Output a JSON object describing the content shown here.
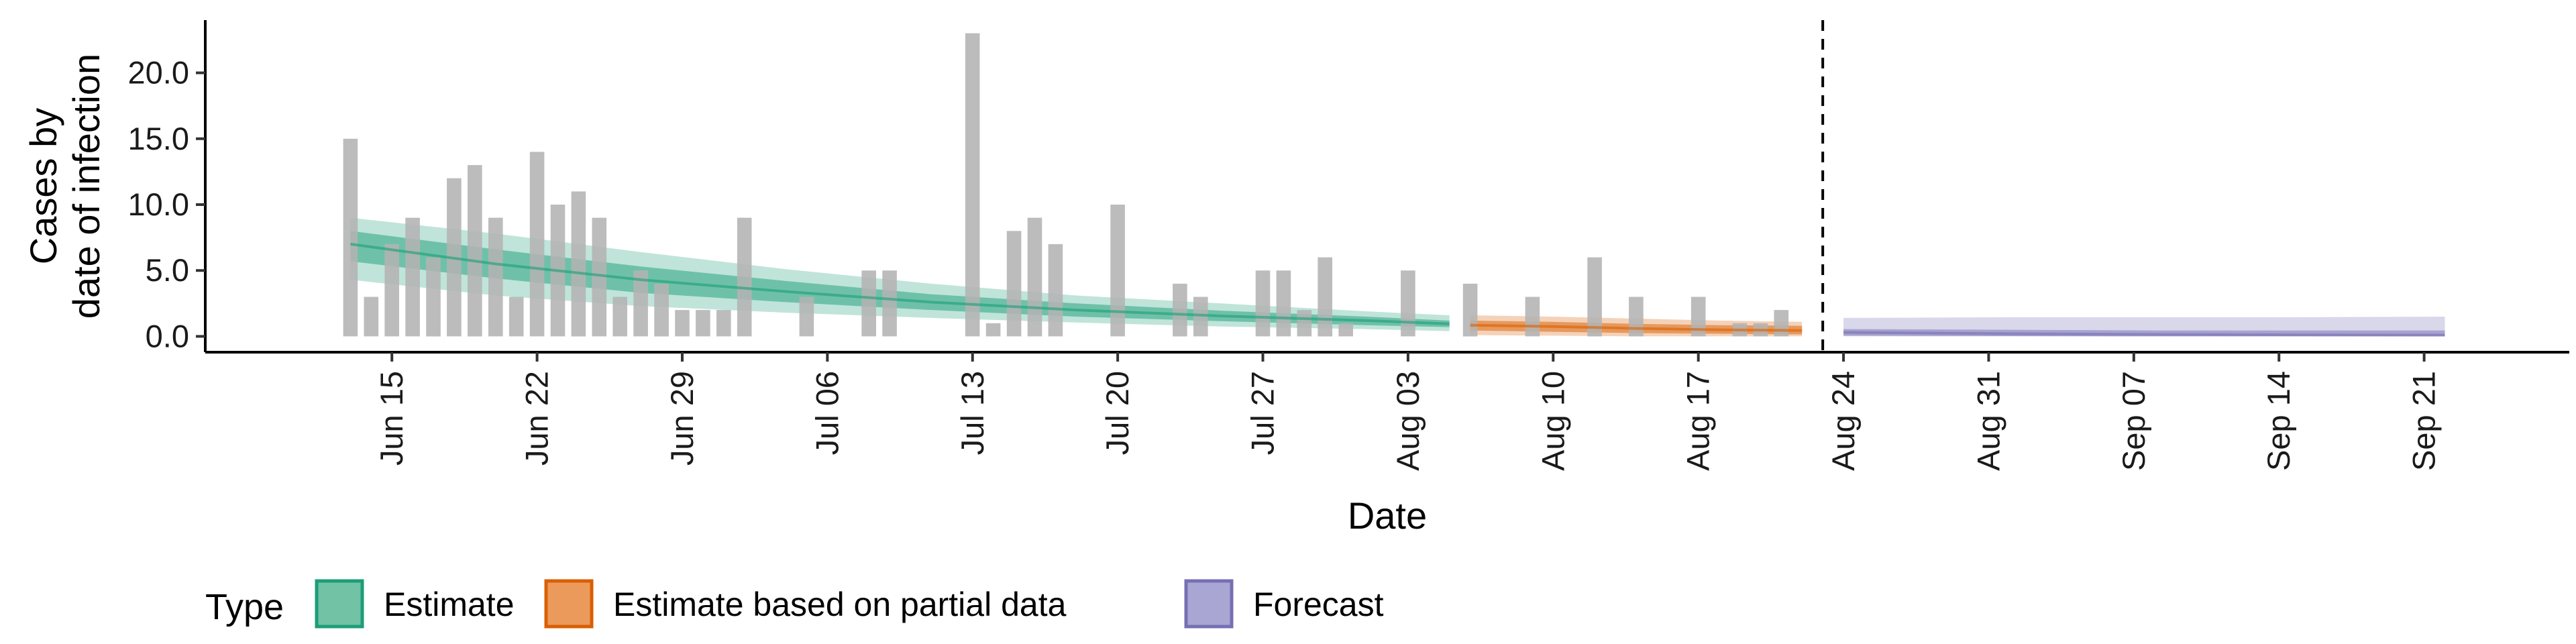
{
  "chart_data": {
    "type": "bar",
    "title": "",
    "xlabel": "Date",
    "ylabel_lines": [
      "Cases by",
      "date of infection"
    ],
    "ylim": [
      -1.2,
      24
    ],
    "y_ticks": [
      "0.0",
      "5.0",
      "10.0",
      "15.0",
      "20.0"
    ],
    "y_tick_values": [
      0,
      5,
      10,
      15,
      20
    ],
    "xlim": [
      "2020-06-06",
      "2020-09-28"
    ],
    "x_ticks": [
      {
        "date": "2020-06-15",
        "label": "Jun 15"
      },
      {
        "date": "2020-06-22",
        "label": "Jun 22"
      },
      {
        "date": "2020-06-29",
        "label": "Jun 29"
      },
      {
        "date": "2020-07-06",
        "label": "Jul 06"
      },
      {
        "date": "2020-07-13",
        "label": "Jul 13"
      },
      {
        "date": "2020-07-20",
        "label": "Jul 20"
      },
      {
        "date": "2020-07-27",
        "label": "Jul 27"
      },
      {
        "date": "2020-08-03",
        "label": "Aug 03"
      },
      {
        "date": "2020-08-10",
        "label": "Aug 10"
      },
      {
        "date": "2020-08-17",
        "label": "Aug 17"
      },
      {
        "date": "2020-08-24",
        "label": "Aug 24"
      },
      {
        "date": "2020-08-31",
        "label": "Aug 31"
      },
      {
        "date": "2020-09-07",
        "label": "Sep 07"
      },
      {
        "date": "2020-09-14",
        "label": "Sep 14"
      },
      {
        "date": "2020-09-21",
        "label": "Sep 21"
      }
    ],
    "grid": false,
    "reported_cases": {
      "color": "#b3b3b3",
      "dates": [
        "2020-06-13",
        "2020-06-14",
        "2020-06-15",
        "2020-06-16",
        "2020-06-17",
        "2020-06-18",
        "2020-06-19",
        "2020-06-20",
        "2020-06-21",
        "2020-06-22",
        "2020-06-23",
        "2020-06-24",
        "2020-06-25",
        "2020-06-26",
        "2020-06-27",
        "2020-06-28",
        "2020-06-29",
        "2020-06-30",
        "2020-07-01",
        "2020-07-02",
        "2020-07-03",
        "2020-07-04",
        "2020-07-05",
        "2020-07-06",
        "2020-07-07",
        "2020-07-08",
        "2020-07-09",
        "2020-07-10",
        "2020-07-11",
        "2020-07-12",
        "2020-07-13",
        "2020-07-14",
        "2020-07-15",
        "2020-07-16",
        "2020-07-17",
        "2020-07-18",
        "2020-07-19",
        "2020-07-20",
        "2020-07-21",
        "2020-07-22",
        "2020-07-23",
        "2020-07-24",
        "2020-07-25",
        "2020-07-26",
        "2020-07-27",
        "2020-07-28",
        "2020-07-29",
        "2020-07-30",
        "2020-07-31",
        "2020-08-01",
        "2020-08-02",
        "2020-08-03",
        "2020-08-04",
        "2020-08-05",
        "2020-08-06",
        "2020-08-07",
        "2020-08-08",
        "2020-08-09",
        "2020-08-10",
        "2020-08-11",
        "2020-08-12",
        "2020-08-13",
        "2020-08-14",
        "2020-08-15",
        "2020-08-16",
        "2020-08-17",
        "2020-08-18",
        "2020-08-19",
        "2020-08-20",
        "2020-08-21"
      ],
      "values": [
        15,
        3,
        7,
        9,
        6,
        12,
        13,
        9,
        3,
        14,
        10,
        11,
        9,
        3,
        5,
        4,
        2,
        2,
        2,
        9,
        0,
        0,
        3,
        0,
        0,
        5,
        5,
        0,
        0,
        0,
        23,
        1,
        8,
        9,
        7,
        0,
        0,
        10,
        0,
        0,
        4,
        3,
        0,
        0,
        5,
        5,
        2,
        6,
        1,
        0,
        0,
        5,
        0,
        0,
        4,
        0,
        0,
        3,
        0,
        0,
        6,
        0,
        3,
        0,
        0,
        3,
        0,
        1,
        1,
        2
      ]
    },
    "series": [
      {
        "name": "Estimate",
        "color": "#1b9e77",
        "dates": [
          "2020-06-13",
          "2020-06-20",
          "2020-06-27",
          "2020-07-04",
          "2020-07-11",
          "2020-07-18",
          "2020-07-25",
          "2020-08-01",
          "2020-08-05"
        ],
        "median": [
          7.0,
          5.5,
          4.3,
          3.4,
          2.6,
          2.0,
          1.55,
          1.2,
          0.95
        ],
        "lower_90": [
          4.3,
          3.1,
          2.3,
          1.8,
          1.4,
          1.05,
          0.75,
          0.55,
          0.4
        ],
        "upper_90": [
          9.0,
          7.8,
          6.4,
          5.1,
          4.0,
          3.1,
          2.5,
          1.9,
          1.6
        ],
        "lower_50": [
          5.7,
          4.4,
          3.3,
          2.6,
          2.0,
          1.5,
          1.15,
          0.85,
          0.7
        ],
        "upper_50": [
          8.0,
          6.6,
          5.3,
          4.2,
          3.2,
          2.5,
          1.95,
          1.5,
          1.2
        ]
      },
      {
        "name": "Estimate based on partial data",
        "color": "#d95f02",
        "dates": [
          "2020-08-06",
          "2020-08-10",
          "2020-08-14",
          "2020-08-18",
          "2020-08-22"
        ],
        "median": [
          0.85,
          0.75,
          0.6,
          0.5,
          0.45
        ],
        "lower_90": [
          0.1,
          0.05,
          0.0,
          0.0,
          0.0
        ],
        "upper_90": [
          1.6,
          1.5,
          1.35,
          1.2,
          1.1
        ],
        "lower_50": [
          0.45,
          0.35,
          0.25,
          0.2,
          0.15
        ],
        "upper_50": [
          1.2,
          1.1,
          0.95,
          0.85,
          0.8
        ]
      },
      {
        "name": "Forecast",
        "color": "#7570b3",
        "dates": [
          "2020-08-24",
          "2020-09-01",
          "2020-09-08",
          "2020-09-15",
          "2020-09-22"
        ],
        "median": [
          0.3,
          0.2,
          0.15,
          0.12,
          0.1
        ],
        "lower_90": [
          0.0,
          0.0,
          0.0,
          0.0,
          0.0
        ],
        "upper_90": [
          1.4,
          1.45,
          1.45,
          1.45,
          1.5
        ],
        "lower_50": [
          0.05,
          0.02,
          0.0,
          0.0,
          0.0
        ],
        "upper_50": [
          0.55,
          0.5,
          0.45,
          0.45,
          0.45
        ]
      }
    ],
    "vline_date": "2020-08-23",
    "legend": {
      "position": "bottom-left",
      "title": "Type",
      "items": [
        {
          "label": "Estimate",
          "fill": "#72c2a6",
          "border": "#1b9e77"
        },
        {
          "label": "Estimate based on partial data",
          "fill": "#ec9a5c",
          "border": "#d95f02"
        },
        {
          "label": "Forecast",
          "fill": "#a9a6d4",
          "border": "#7570b3"
        }
      ]
    }
  }
}
